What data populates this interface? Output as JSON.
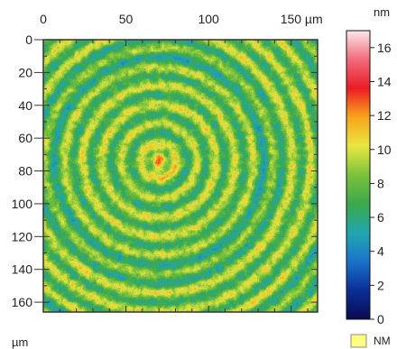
{
  "chart_data": {
    "type": "heatmap",
    "title": "",
    "x_axis": {
      "unit": "µm",
      "ticks": [
        "0",
        "50",
        "100",
        "150 µm"
      ],
      "range": [
        0,
        166
      ],
      "position": "top"
    },
    "y_axis": {
      "unit": "µm",
      "ticks": [
        "0",
        "20",
        "40",
        "60",
        "80",
        "100",
        "120",
        "140",
        "160"
      ],
      "range": [
        0,
        166
      ],
      "position": "left",
      "inverted": true
    },
    "colorbar": {
      "unit": "nm",
      "ticks": [
        "0",
        "2",
        "4",
        "6",
        "8",
        "10",
        "12",
        "14",
        "16"
      ],
      "range": [
        0,
        17
      ],
      "position": "right",
      "colors": [
        "#0a0a50",
        "#0b2f96",
        "#1a73c9",
        "#22a6b0",
        "#3aa84a",
        "#7bc23c",
        "#e8e640",
        "#f7a51c",
        "#ec1c24",
        "#f06a7a",
        "#fde8ea"
      ]
    },
    "nm_legend": {
      "label": "NM",
      "color": "#ffff80"
    },
    "pattern": {
      "description_type": "concentric rings",
      "center_um": [
        70,
        74
      ],
      "ring_period_um": 11.5,
      "peak_region_radius_um": 7,
      "peak_value_nm": 12
    }
  }
}
